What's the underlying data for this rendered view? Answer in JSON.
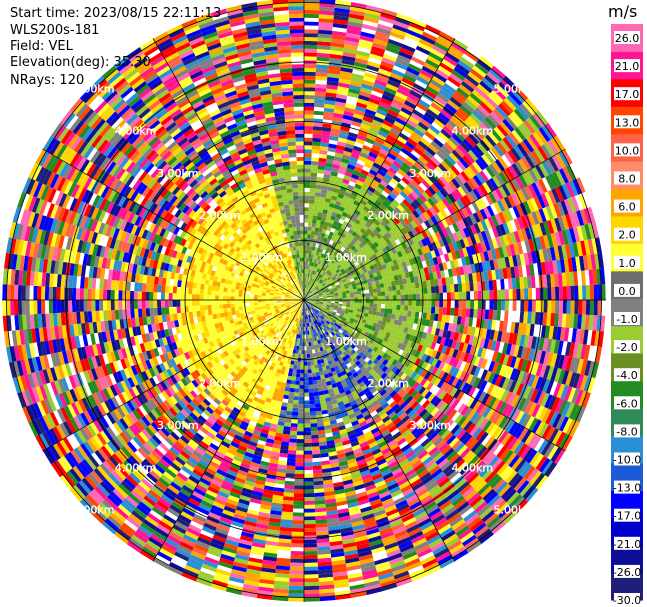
{
  "header": {
    "start_time": "Start time: 2023/08/15 22:11:13",
    "site": "WLS200s-181",
    "field": "Field: VEL",
    "elevation": "Elevation(deg): 35.30",
    "nrays": "NRays: 120"
  },
  "colorbar": {
    "unit": "m/s",
    "ticks": [
      "26.0",
      "21.0",
      "17.0",
      "13.0",
      "10.0",
      "8.0",
      "6.0",
      "2.0",
      "1.0",
      "0.0",
      "-1.0",
      "-2.0",
      "-4.0",
      "-6.0",
      "-8.0",
      "-10.0",
      "-13.0",
      "-17.0",
      "-21.0",
      "-26.0",
      "-30.0"
    ],
    "colors": [
      "#1f1f7a",
      "#0d0d99",
      "#0000cc",
      "#0000ff",
      "#1d5bd6",
      "#2a8fd4",
      "#2e8b57",
      "#228b22",
      "#6b8e23",
      "#9acd32",
      "#808080",
      "#6e6e6e",
      "#ffff33",
      "#ffd700",
      "#ffa500",
      "#ff8c69",
      "#ff6347",
      "#ff4500",
      "#ff0000",
      "#ff1493",
      "#ff69b4"
    ]
  },
  "chart_data": {
    "type": "ppi",
    "field": "VEL",
    "units": "m/s",
    "n_rays": 120,
    "elevation_deg": 35.3,
    "max_range_km": 5.0,
    "range_ring_labels": [
      "1.00km",
      "2.00km",
      "3.00km",
      "4.00km",
      "5.00km"
    ],
    "color_range": [
      -30.0,
      26.0
    ]
  }
}
